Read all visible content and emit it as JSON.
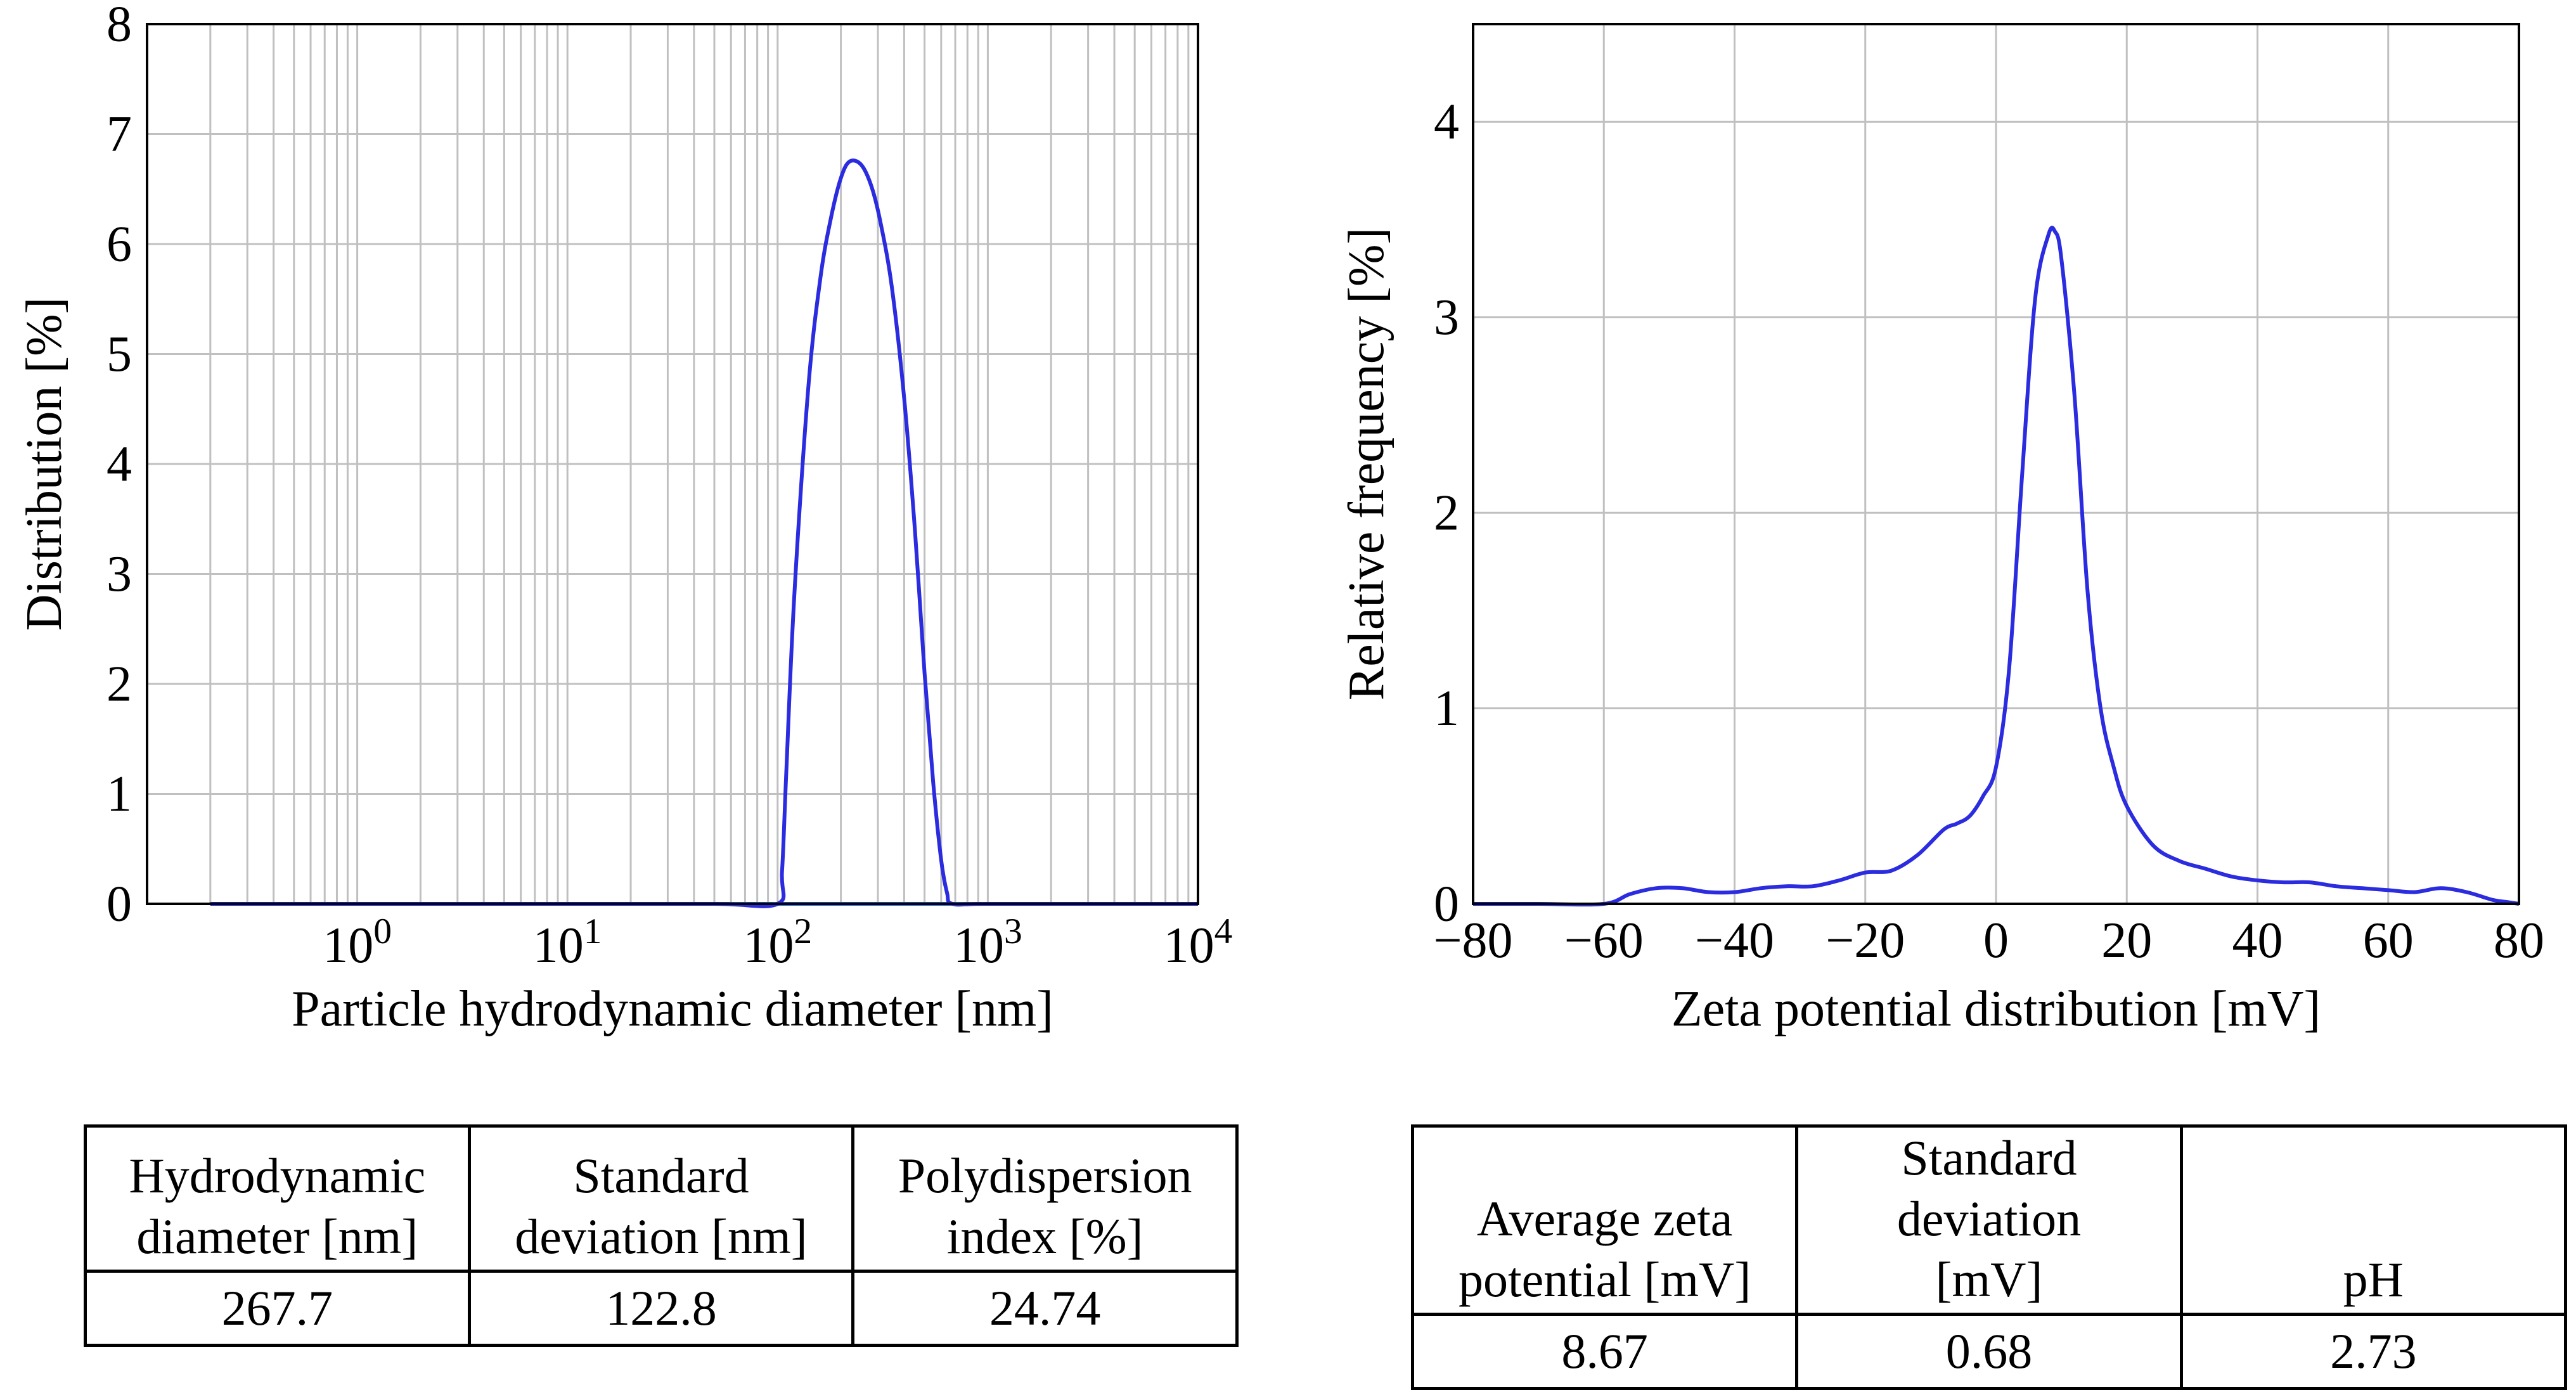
{
  "colors": {
    "curve": "#2b2be0",
    "baseline": "#1f6fe0",
    "grid": "#c0c0c0",
    "frame": "#000000"
  },
  "chart_data": [
    {
      "type": "line",
      "title": "",
      "xscale": "log",
      "xlabel": "Particle hydrodynamic diameter [nm]",
      "ylabel": "Distribution [%]",
      "xlim": [
        0.1,
        10000
      ],
      "ylim": [
        0,
        8
      ],
      "grid": true,
      "ytick_labels": [
        "0",
        "1",
        "2",
        "3",
        "4",
        "5",
        "6",
        "7",
        "8"
      ],
      "xtick_labels": [
        {
          "base": "10",
          "exp": "0"
        },
        {
          "base": "10",
          "exp": "1"
        },
        {
          "base": "10",
          "exp": "2"
        },
        {
          "base": "10",
          "exp": "3"
        },
        {
          "base": "10",
          "exp": "4"
        }
      ],
      "series": [
        {
          "name": "Distribution",
          "x": [
            0.2,
            1,
            10,
            50,
            100,
            105,
            110,
            120,
            140,
            160,
            180,
            200,
            220,
            250,
            280,
            310,
            350,
            400,
            450,
            500,
            550,
            600,
            640,
            680,
            1000,
            5000,
            10000
          ],
          "y": [
            0,
            0,
            0,
            0,
            0,
            0.3,
            1.2,
            2.8,
            4.7,
            5.7,
            6.25,
            6.6,
            6.75,
            6.72,
            6.52,
            6.18,
            5.6,
            4.6,
            3.4,
            2.1,
            1.1,
            0.4,
            0.1,
            0,
            0,
            0,
            0
          ]
        }
      ]
    },
    {
      "type": "line",
      "title": "",
      "xlabel": "Zeta potential distribution [mV]",
      "ylabel": "Relative frequency [%]",
      "xlim": [
        -80,
        80
      ],
      "ylim": [
        0,
        4.5
      ],
      "grid": true,
      "xticks": [
        -80,
        -60,
        -40,
        -20,
        0,
        20,
        40,
        60,
        80
      ],
      "xtick_labels": [
        "−80",
        "−60",
        "−40",
        "−20",
        "0",
        "20",
        "40",
        "60",
        "80"
      ],
      "yticks": [
        0,
        1,
        2,
        3,
        4
      ],
      "ytick_labels": [
        "0",
        "1",
        "2",
        "3",
        "4"
      ],
      "series": [
        {
          "name": "Relative frequency",
          "x": [
            -80,
            -70,
            -60,
            -56,
            -52,
            -48,
            -44,
            -40,
            -36,
            -32,
            -28,
            -24,
            -20,
            -16,
            -12,
            -8,
            -6,
            -4,
            -2,
            0,
            2,
            4,
            6,
            8,
            9,
            10,
            12,
            14,
            16,
            18,
            20,
            24,
            28,
            32,
            36,
            40,
            44,
            48,
            52,
            56,
            60,
            64,
            68,
            72,
            76,
            78,
            80
          ],
          "y": [
            0,
            0,
            0,
            0.05,
            0.08,
            0.08,
            0.06,
            0.06,
            0.08,
            0.09,
            0.09,
            0.12,
            0.16,
            0.17,
            0.25,
            0.38,
            0.41,
            0.45,
            0.55,
            0.7,
            1.2,
            2.2,
            3.1,
            3.42,
            3.44,
            3.3,
            2.6,
            1.6,
            1.0,
            0.7,
            0.5,
            0.3,
            0.22,
            0.18,
            0.14,
            0.12,
            0.11,
            0.11,
            0.09,
            0.08,
            0.07,
            0.06,
            0.08,
            0.06,
            0.02,
            0.01,
            0
          ]
        }
      ]
    }
  ],
  "tables": {
    "psd": {
      "headers": [
        [
          "Hydrodynamic",
          "diameter [nm]"
        ],
        [
          "Standard",
          "deviation [nm]"
        ],
        [
          "Polydispersion",
          "index [%]"
        ]
      ],
      "values": [
        "267.7",
        "122.8",
        "24.74"
      ]
    },
    "zeta": {
      "headers": [
        [
          "Average zeta",
          "potential [mV]"
        ],
        [
          "Standard deviation",
          "[mV]"
        ],
        [
          "",
          "pH"
        ]
      ],
      "values": [
        "8.67",
        "0.68",
        "2.73"
      ]
    }
  }
}
